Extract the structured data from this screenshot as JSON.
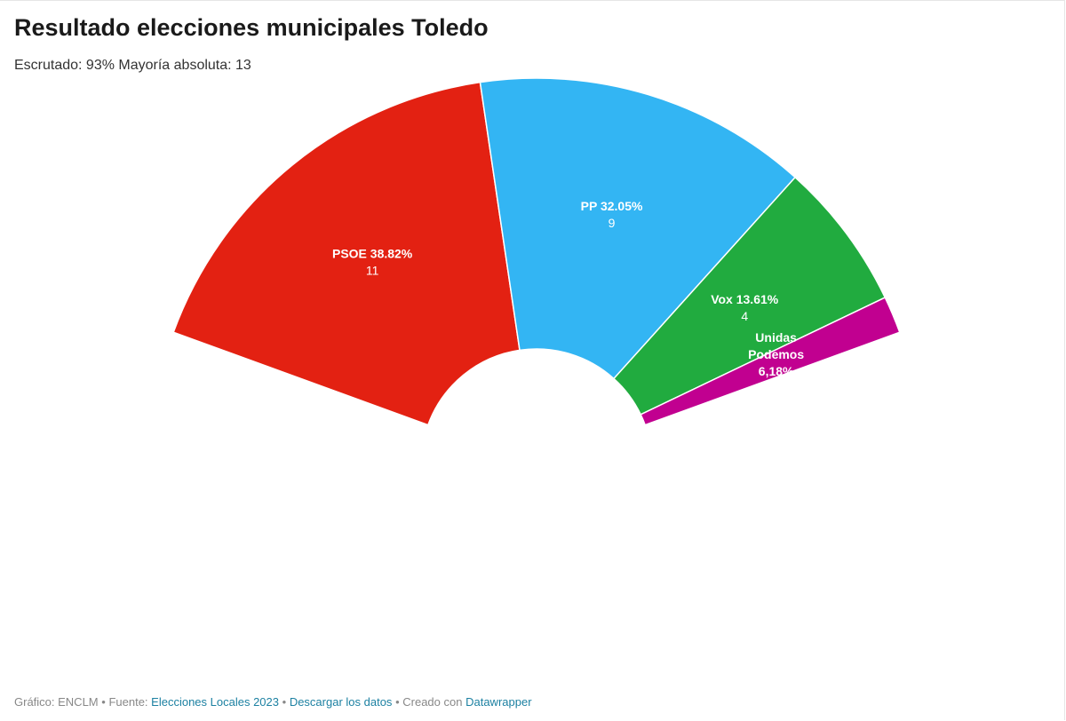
{
  "title": "Resultado elecciones municipales Toledo",
  "subtitle": "Escrutado: 93% Mayoría absoluta: 13",
  "chart_data": {
    "type": "parliament-semicircle",
    "title": "Resultado elecciones municipales Toledo",
    "subtitle": "Escrutado: 93% Mayoría absoluta: 13",
    "total_seats": 25,
    "series": [
      {
        "name": "PSOE",
        "pct_label": "38.82%",
        "value": 38.82,
        "seats": 11,
        "color": "#e32112",
        "label_lines": [
          "PSOE 38.82%"
        ]
      },
      {
        "name": "PP",
        "pct_label": "32.05%",
        "value": 32.05,
        "seats": 9,
        "color": "#33b5f3",
        "label_lines": [
          "PP 32.05%"
        ]
      },
      {
        "name": "Vox",
        "pct_label": "13.61%",
        "value": 13.61,
        "seats": 4,
        "color": "#21ab3f",
        "label_lines": [
          "Vox 13.61%"
        ]
      },
      {
        "name": "Unidas Podemos",
        "pct_label": "6,18%",
        "value": 6.18,
        "seats": 1,
        "color": "#c10090",
        "label_lines": [
          "Unidas",
          "Podemos",
          "6,18%"
        ]
      }
    ]
  },
  "footer": {
    "credit": "Gráfico: ENCLM",
    "source_prefix": "Fuente:",
    "source_link": "Elecciones Locales 2023",
    "download_link": "Descargar los datos",
    "created_prefix": "Creado con",
    "tool_link": "Datawrapper",
    "separator": "•"
  }
}
